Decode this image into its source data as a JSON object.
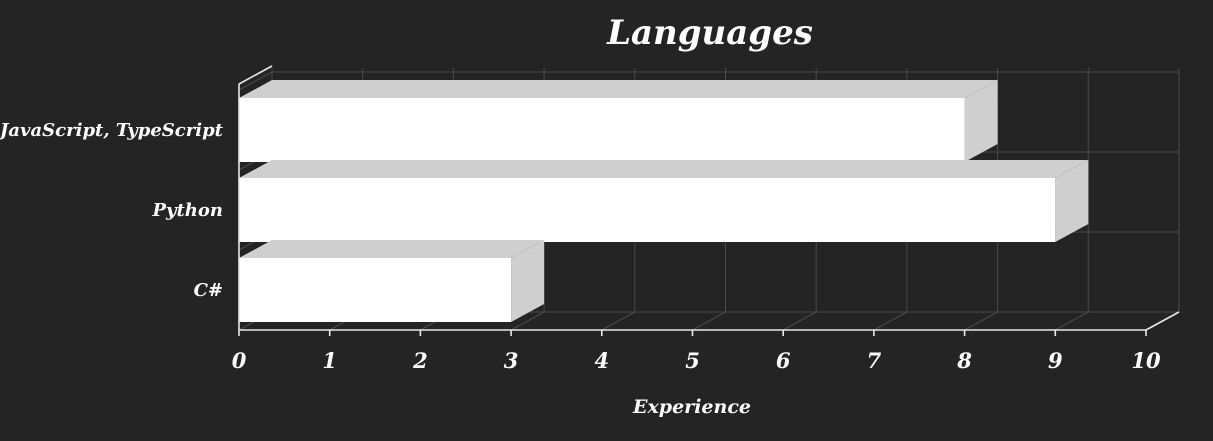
{
  "chart_data": {
    "type": "bar",
    "orientation": "horizontal",
    "title": "Languages",
    "xlabel": "Experience",
    "ylabel": "",
    "categories": [
      "JavaScript, TypeScript",
      "Python",
      "C#"
    ],
    "values": [
      8,
      9,
      3
    ],
    "xlim": [
      0,
      10
    ],
    "x_ticks": [
      "0",
      "1",
      "2",
      "3",
      "4",
      "5",
      "6",
      "7",
      "8",
      "9",
      "10"
    ],
    "grid": true,
    "legend": "none",
    "colors": {
      "background": "#242424",
      "bar_front": "#ffffff",
      "bar_side": "#cfcfcf",
      "text": "#ffffff",
      "grid": "#4a4a4a"
    }
  }
}
